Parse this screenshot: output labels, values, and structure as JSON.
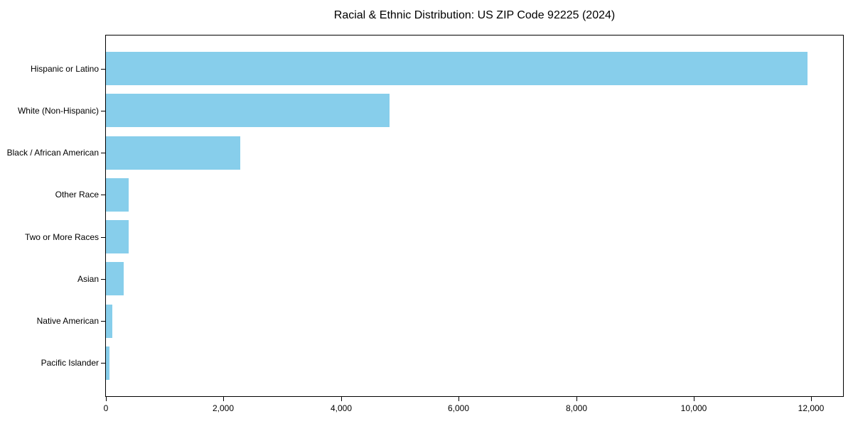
{
  "chart_data": {
    "type": "bar",
    "orientation": "horizontal",
    "title": "Racial & Ethnic Distribution: US ZIP Code 92225 (2024)",
    "categories": [
      "Hispanic or Latino",
      "White (Non-Hispanic)",
      "Black / African American",
      "Other Race",
      "Two or More Races",
      "Asian",
      "Native American",
      "Pacific Islander"
    ],
    "values": [
      11940,
      4830,
      2280,
      390,
      385,
      300,
      105,
      55
    ],
    "xlabel": "",
    "ylabel": "",
    "xlim": [
      0,
      12540
    ],
    "x_ticks": [
      0,
      2000,
      4000,
      6000,
      8000,
      10000,
      12000
    ],
    "x_tick_labels": [
      "0",
      "2,000",
      "4,000",
      "6,000",
      "8,000",
      "10,000",
      "12,000"
    ],
    "bar_color": "#87CEEB",
    "background": "#FFFFFF",
    "spine_color": "#000000",
    "grid": false,
    "legend": null
  }
}
